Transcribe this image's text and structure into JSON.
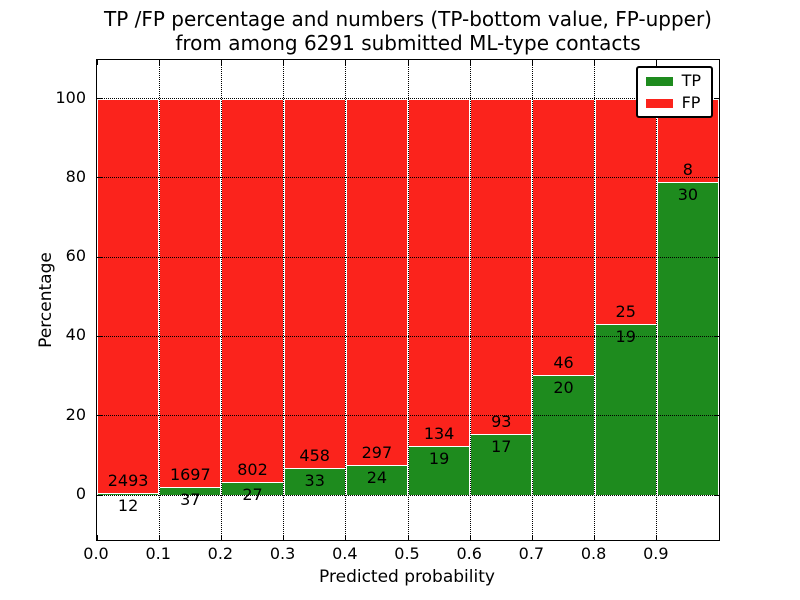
{
  "title": {
    "line1": "TP /FP percentage and numbers (TP-bottom value, FP-upper)",
    "line2": "from among 6291 submitted ML-type contacts"
  },
  "chart_data": {
    "type": "bar",
    "stacked": true,
    "normalized_to_percent": true,
    "bin_width": 0.1,
    "categories": [
      0.0,
      0.1,
      0.2,
      0.3,
      0.4,
      0.5,
      0.6,
      0.7,
      0.8,
      0.9
    ],
    "series": [
      {
        "name": "TP",
        "color": "#1e8b1e",
        "counts": [
          12,
          37,
          27,
          33,
          24,
          19,
          17,
          20,
          19,
          30
        ]
      },
      {
        "name": "FP",
        "color": "#fb231c",
        "counts": [
          2493,
          1697,
          802,
          458,
          297,
          134,
          93,
          46,
          25,
          8
        ]
      }
    ],
    "tp_percent": [
      0.48,
      2.13,
      3.26,
      6.72,
      7.48,
      12.42,
      15.45,
      30.3,
      43.18,
      78.95
    ],
    "xlabel": "Predicted probability",
    "ylabel": "Percentage",
    "x_ticks": [
      "0.0",
      "0.1",
      "0.2",
      "0.3",
      "0.4",
      "0.5",
      "0.6",
      "0.7",
      "0.8",
      "0.9"
    ],
    "y_ticks": [
      "0",
      "20",
      "40",
      "60",
      "80",
      "100"
    ],
    "xlim": [
      0.0,
      1.0
    ],
    "ylim": [
      -11.3,
      110.3
    ],
    "grid": "dotted",
    "legend_position": "upper right"
  }
}
